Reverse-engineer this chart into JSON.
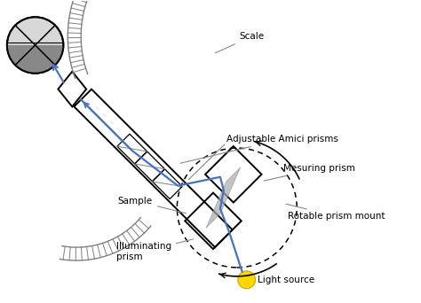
{
  "background_color": "#ffffff",
  "black": "#000000",
  "blue": "#4472C4",
  "gray": "#808080",
  "dark_gray": "#555555",
  "light_gray": "#c0c0c0",
  "gold": "#FFD700",
  "gold_edge": "#ccaa00",
  "labels": {
    "scale": "Scale",
    "amici": "Adjustable Amici prisms",
    "measuring": "Mesuring prism",
    "rotatable": "Rotable prism mount",
    "sample": "Sample",
    "illuminating": "Illuminating\nprism",
    "light_source": "Light source"
  },
  "label_fontsize": 7.5,
  "lw": 1.4
}
